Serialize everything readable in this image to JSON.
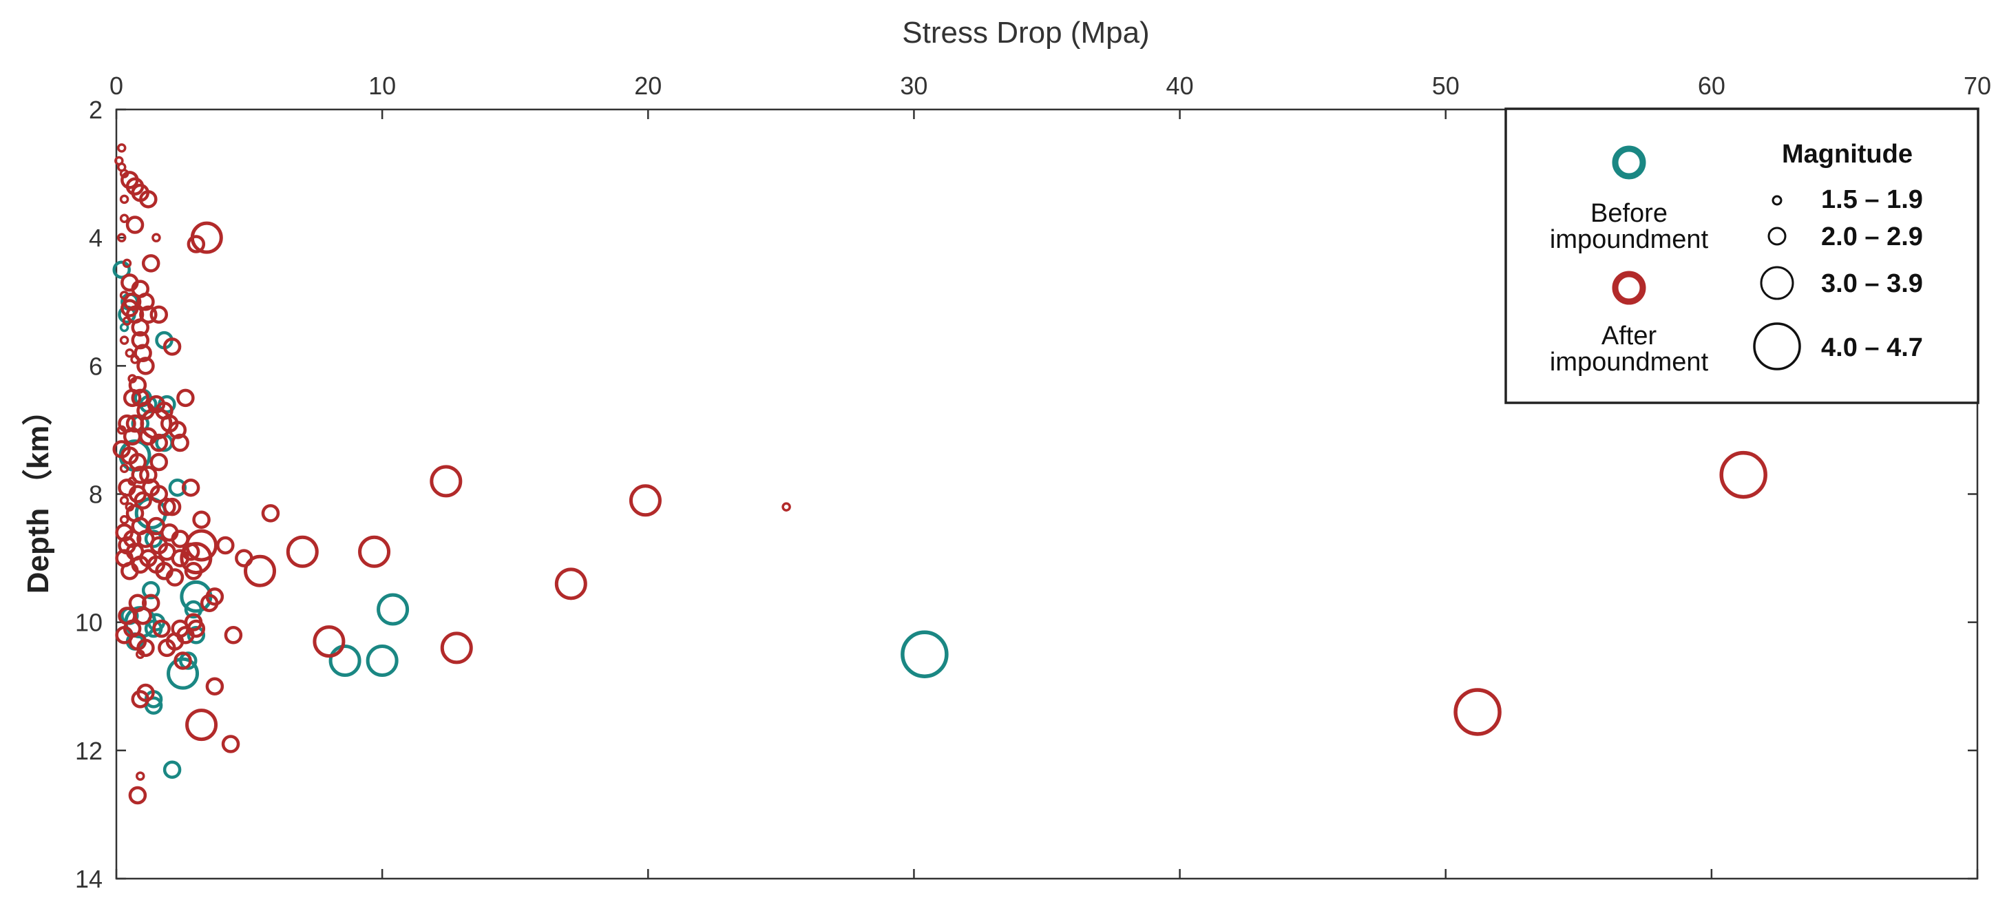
{
  "chart_data": {
    "type": "scatter",
    "title": "",
    "xlabel": "Stress Drop (Mpa)",
    "ylabel": "Depth （km）",
    "xlim": [
      0,
      70
    ],
    "ylim": [
      2,
      14
    ],
    "y_reversed": true,
    "x_axis_position": "top",
    "x_ticks": [
      0,
      10,
      20,
      30,
      40,
      50,
      60,
      70
    ],
    "y_ticks": [
      2,
      4,
      6,
      8,
      10,
      12,
      14
    ],
    "grid": false,
    "legend_position": "top-right",
    "legend": {
      "series_entries": [
        {
          "key": "before",
          "label_lines": [
            "Before",
            "impoundment"
          ]
        },
        {
          "key": "after",
          "label_lines": [
            "After",
            "impoundment"
          ]
        }
      ],
      "magnitude_title": "Magnitude",
      "magnitude_bins": [
        {
          "label": "1.5 – 1.9",
          "size_class": 1
        },
        {
          "label": "2.0 – 2.9",
          "size_class": 2
        },
        {
          "label": "3.0 – 3.9",
          "size_class": 3
        },
        {
          "label": "4.0 – 4.7",
          "size_class": 4
        }
      ]
    },
    "colors": {
      "before": "#1a8783",
      "after": "#b22a2a",
      "axis": "#333333",
      "legend_box": "#222222"
    },
    "series": [
      {
        "name": "Before impoundment",
        "key": "before",
        "points": [
          [
            0.2,
            4.5,
            2
          ],
          [
            0.3,
            5.4,
            1
          ],
          [
            0.4,
            5.2,
            2
          ],
          [
            0.5,
            5.0,
            2
          ],
          [
            0.7,
            7.4,
            3
          ],
          [
            1.0,
            6.5,
            2
          ],
          [
            0.9,
            6.9,
            2
          ],
          [
            1.2,
            6.6,
            2
          ],
          [
            1.8,
            7.2,
            2
          ],
          [
            1.9,
            6.6,
            2
          ],
          [
            1.8,
            5.6,
            2
          ],
          [
            2.3,
            7.9,
            2
          ],
          [
            1.3,
            8.3,
            3
          ],
          [
            1.4,
            8.7,
            2
          ],
          [
            1.8,
            9.2,
            2
          ],
          [
            1.3,
            9.5,
            2
          ],
          [
            3.0,
            9.6,
            3
          ],
          [
            2.9,
            9.8,
            2
          ],
          [
            3.0,
            10.2,
            2
          ],
          [
            0.5,
            9.9,
            2
          ],
          [
            0.9,
            10.0,
            3
          ],
          [
            1.5,
            10.0,
            2
          ],
          [
            1.4,
            10.1,
            2
          ],
          [
            0.7,
            10.3,
            2
          ],
          [
            2.7,
            10.6,
            2
          ],
          [
            2.5,
            10.8,
            3
          ],
          [
            1.4,
            11.2,
            2
          ],
          [
            1.4,
            11.3,
            2
          ],
          [
            2.1,
            12.3,
            2
          ],
          [
            8.6,
            10.6,
            3
          ],
          [
            10.0,
            10.6,
            3
          ],
          [
            10.4,
            9.8,
            3
          ],
          [
            30.4,
            10.5,
            4
          ]
        ]
      },
      {
        "name": "After impoundment",
        "key": "after",
        "points": [
          [
            0.2,
            2.6,
            1
          ],
          [
            0.1,
            2.8,
            1
          ],
          [
            0.2,
            2.9,
            1
          ],
          [
            0.3,
            3.0,
            1
          ],
          [
            0.5,
            3.1,
            2
          ],
          [
            0.7,
            3.2,
            2
          ],
          [
            0.9,
            3.3,
            2
          ],
          [
            1.2,
            3.4,
            2
          ],
          [
            0.3,
            3.4,
            1
          ],
          [
            0.7,
            3.8,
            2
          ],
          [
            0.3,
            3.7,
            1
          ],
          [
            0.2,
            4.0,
            1
          ],
          [
            1.5,
            4.0,
            1
          ],
          [
            3.4,
            4.0,
            3
          ],
          [
            3.0,
            4.1,
            2
          ],
          [
            1.3,
            4.4,
            2
          ],
          [
            0.4,
            4.4,
            1
          ],
          [
            0.5,
            4.7,
            2
          ],
          [
            0.9,
            4.8,
            2
          ],
          [
            0.3,
            4.9,
            1
          ],
          [
            0.6,
            5.0,
            2
          ],
          [
            1.1,
            5.0,
            2
          ],
          [
            0.5,
            5.1,
            2
          ],
          [
            0.7,
            5.2,
            2
          ],
          [
            1.2,
            5.2,
            2
          ],
          [
            1.6,
            5.2,
            2
          ],
          [
            0.4,
            5.3,
            1
          ],
          [
            0.9,
            5.4,
            2
          ],
          [
            0.3,
            5.6,
            1
          ],
          [
            2.1,
            5.7,
            2
          ],
          [
            0.9,
            5.6,
            2
          ],
          [
            0.5,
            5.8,
            1
          ],
          [
            1.0,
            5.8,
            2
          ],
          [
            0.7,
            5.9,
            1
          ],
          [
            1.1,
            6.0,
            2
          ],
          [
            0.6,
            6.2,
            1
          ],
          [
            0.8,
            6.3,
            2
          ],
          [
            0.6,
            6.5,
            2
          ],
          [
            0.9,
            6.5,
            2
          ],
          [
            2.6,
            6.5,
            2
          ],
          [
            1.5,
            6.6,
            2
          ],
          [
            1.8,
            6.7,
            2
          ],
          [
            1.1,
            6.7,
            2
          ],
          [
            0.4,
            6.9,
            2
          ],
          [
            0.7,
            6.9,
            2
          ],
          [
            1.5,
            6.9,
            3
          ],
          [
            2.0,
            6.9,
            2
          ],
          [
            2.3,
            7.0,
            2
          ],
          [
            0.2,
            7.0,
            1
          ],
          [
            0.6,
            7.1,
            2
          ],
          [
            1.2,
            7.1,
            2
          ],
          [
            2.4,
            7.2,
            2
          ],
          [
            1.6,
            7.2,
            2
          ],
          [
            0.2,
            7.3,
            2
          ],
          [
            0.5,
            7.4,
            2
          ],
          [
            1.6,
            7.5,
            2
          ],
          [
            0.8,
            7.5,
            2
          ],
          [
            0.3,
            7.6,
            1
          ],
          [
            0.9,
            7.7,
            2
          ],
          [
            1.2,
            7.7,
            2
          ],
          [
            0.6,
            7.8,
            1
          ],
          [
            0.4,
            7.9,
            2
          ],
          [
            1.3,
            7.9,
            2
          ],
          [
            2.8,
            7.9,
            2
          ],
          [
            0.8,
            8.0,
            2
          ],
          [
            1.6,
            8.0,
            2
          ],
          [
            0.3,
            8.1,
            1
          ],
          [
            1.0,
            8.1,
            2
          ],
          [
            2.1,
            8.2,
            2
          ],
          [
            0.5,
            8.2,
            1
          ],
          [
            1.9,
            8.2,
            2
          ],
          [
            0.7,
            8.3,
            2
          ],
          [
            3.2,
            8.4,
            2
          ],
          [
            0.3,
            8.4,
            1
          ],
          [
            0.9,
            8.5,
            2
          ],
          [
            1.5,
            8.5,
            2
          ],
          [
            2.0,
            8.6,
            2
          ],
          [
            0.3,
            8.6,
            2
          ],
          [
            0.6,
            8.7,
            2
          ],
          [
            1.1,
            8.7,
            2
          ],
          [
            2.4,
            8.7,
            2
          ],
          [
            0.4,
            8.8,
            2
          ],
          [
            1.6,
            8.8,
            2
          ],
          [
            3.2,
            8.8,
            3
          ],
          [
            4.1,
            8.8,
            2
          ],
          [
            0.7,
            8.9,
            2
          ],
          [
            1.9,
            8.9,
            2
          ],
          [
            2.8,
            8.9,
            2
          ],
          [
            0.3,
            9.0,
            2
          ],
          [
            1.2,
            9.0,
            2
          ],
          [
            2.4,
            9.0,
            2
          ],
          [
            3.0,
            9.0,
            3
          ],
          [
            4.8,
            9.0,
            2
          ],
          [
            0.9,
            9.1,
            2
          ],
          [
            1.5,
            9.1,
            2
          ],
          [
            0.5,
            9.2,
            2
          ],
          [
            1.8,
            9.2,
            2
          ],
          [
            2.9,
            9.2,
            2
          ],
          [
            2.2,
            9.3,
            2
          ],
          [
            3.7,
            9.6,
            2
          ],
          [
            3.5,
            9.7,
            2
          ],
          [
            5.4,
            9.2,
            3
          ],
          [
            7.0,
            8.9,
            3
          ],
          [
            9.7,
            8.9,
            3
          ],
          [
            0.8,
            9.7,
            2
          ],
          [
            1.3,
            9.7,
            2
          ],
          [
            0.4,
            9.9,
            2
          ],
          [
            1.0,
            9.9,
            2
          ],
          [
            2.9,
            10.0,
            2
          ],
          [
            0.6,
            10.1,
            2
          ],
          [
            1.7,
            10.1,
            2
          ],
          [
            2.4,
            10.1,
            2
          ],
          [
            3.0,
            10.1,
            2
          ],
          [
            0.3,
            10.2,
            2
          ],
          [
            2.6,
            10.2,
            2
          ],
          [
            4.4,
            10.2,
            2
          ],
          [
            0.8,
            10.3,
            2
          ],
          [
            2.2,
            10.3,
            2
          ],
          [
            1.1,
            10.4,
            2
          ],
          [
            1.9,
            10.4,
            2
          ],
          [
            0.9,
            10.5,
            1
          ],
          [
            2.5,
            10.6,
            2
          ],
          [
            8.0,
            10.3,
            3
          ],
          [
            12.8,
            10.4,
            3
          ],
          [
            3.7,
            11.0,
            2
          ],
          [
            0.9,
            11.2,
            2
          ],
          [
            1.1,
            11.1,
            2
          ],
          [
            3.2,
            11.6,
            3
          ],
          [
            4.3,
            11.9,
            2
          ],
          [
            0.9,
            12.4,
            1
          ],
          [
            0.8,
            12.7,
            2
          ],
          [
            5.8,
            8.3,
            2
          ],
          [
            12.4,
            7.8,
            3
          ],
          [
            19.9,
            8.1,
            3
          ],
          [
            25.2,
            8.2,
            1
          ],
          [
            17.1,
            9.4,
            3
          ],
          [
            51.2,
            11.4,
            4
          ],
          [
            61.2,
            7.7,
            4
          ]
        ]
      }
    ]
  }
}
